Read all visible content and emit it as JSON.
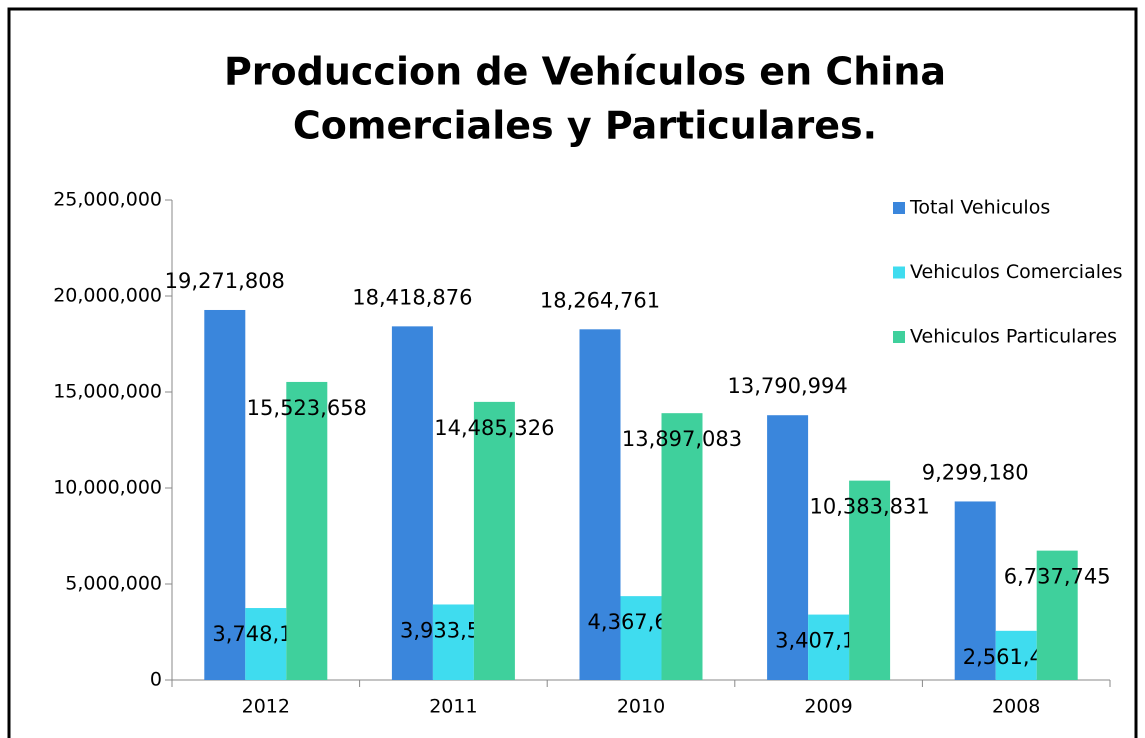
{
  "chart_data": {
    "type": "bar",
    "title": [
      "Produccion de Vehículos en China",
      "Comerciales y Particulares."
    ],
    "categories": [
      "2012",
      "2011",
      "2010",
      "2009",
      "2008"
    ],
    "series": [
      {
        "name": "Total Vehiculos",
        "color": "#3a86dc",
        "values": [
          19271808,
          18418876,
          18264761,
          13790994,
          9299180
        ],
        "value_labels": [
          "19,271,808",
          "18,418,876",
          "18,264,761",
          "13,790,994",
          "9,299,180"
        ]
      },
      {
        "name": "Vehiculos Comerciales",
        "color": "#3fdcef",
        "values": [
          3748150,
          3933550,
          4367678,
          3407163,
          2561435
        ],
        "value_labels": [
          "3,748,150",
          "3,933,550",
          "4,367,678",
          "3,407,163",
          "2,561,435"
        ]
      },
      {
        "name": "Vehiculos Particulares",
        "color": "#3fd09c",
        "values": [
          15523658,
          14485326,
          13897083,
          10383831,
          6737745
        ],
        "value_labels": [
          "15,523,658",
          "14,485,326",
          "13,897,083",
          "10,383,831",
          "6,737,745"
        ]
      }
    ],
    "ylim": [
      0,
      25000000
    ],
    "yticks": [
      0,
      {
        "value": 5000000,
        "label": "5,000,000"
      },
      {
        "value": 10000000,
        "label": "10,000,000"
      },
      {
        "value": 15000000,
        "label": "15,000,000"
      },
      {
        "value": 20000000,
        "label": "20,000,000"
      },
      {
        "value": 25000000,
        "label": "25,000,000"
      }
    ]
  }
}
